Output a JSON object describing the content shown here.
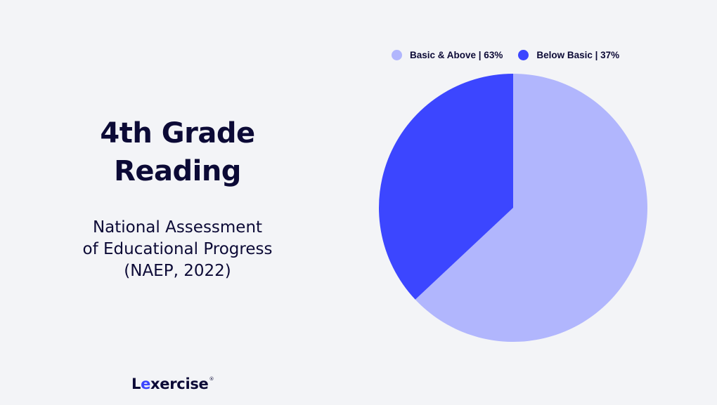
{
  "title": {
    "line1": "4th Grade",
    "line2": "Reading"
  },
  "subtitle": {
    "line1": "National Assessment",
    "line2": "of Educational Progress",
    "line3": "(NAEP, 2022)"
  },
  "brand": {
    "logo_prefix": "L",
    "logo_accent": "e",
    "logo_suffix": "xercise",
    "registered_mark": "®"
  },
  "colors": {
    "background": "#f3f4f7",
    "text": "#0c0a36",
    "basic_above": "#b1b6fd",
    "below_basic": "#3c46ff"
  },
  "chart_data": {
    "type": "pie",
    "legend_position": "top",
    "slices": [
      {
        "label": "Basic & Above | 63%",
        "value": 63,
        "color": "#b1b6fd"
      },
      {
        "label": "Below Basic | 37%",
        "value": 37,
        "color": "#3c46ff"
      }
    ]
  }
}
